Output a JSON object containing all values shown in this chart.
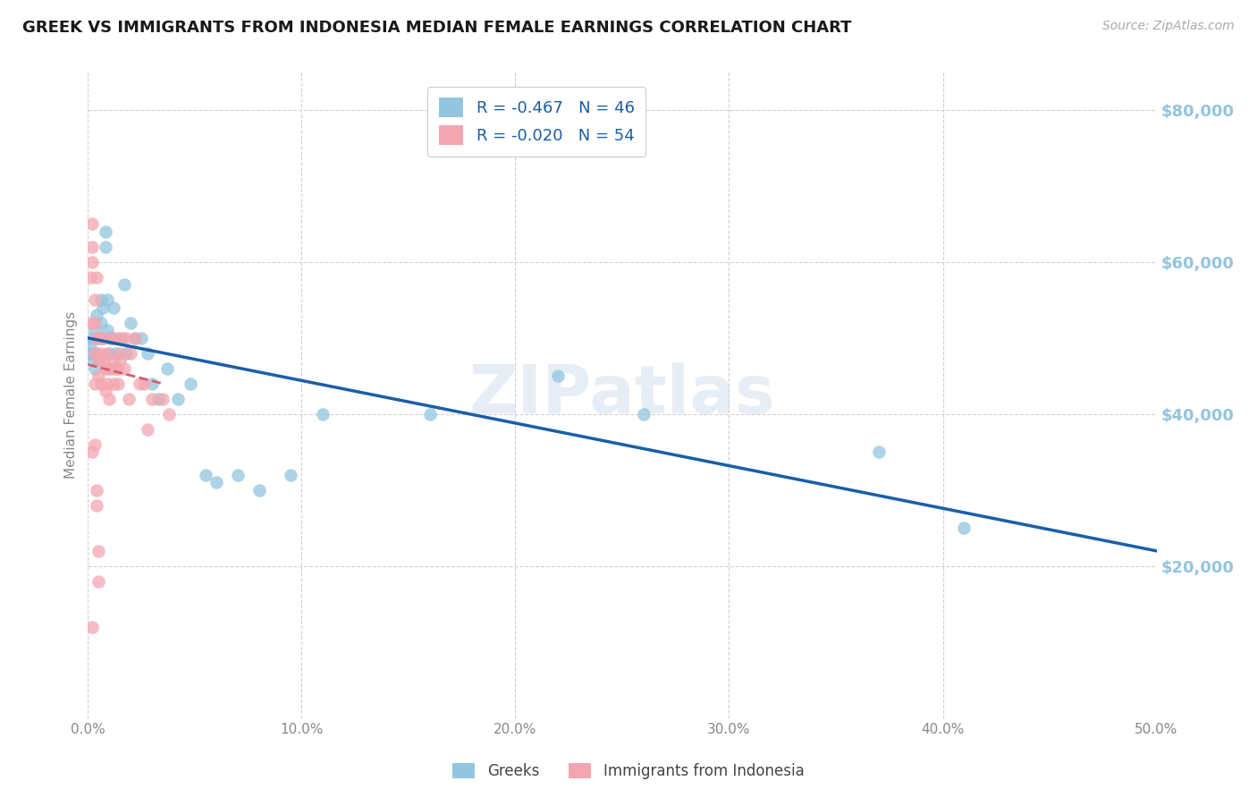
{
  "title": "GREEK VS IMMIGRANTS FROM INDONESIA MEDIAN FEMALE EARNINGS CORRELATION CHART",
  "source": "Source: ZipAtlas.com",
  "ylabel": "Median Female Earnings",
  "xlim": [
    0.0,
    0.5
  ],
  "ylim": [
    0,
    85000
  ],
  "yticks": [
    20000,
    40000,
    60000,
    80000
  ],
  "xticks": [
    0.0,
    0.1,
    0.2,
    0.3,
    0.4,
    0.5
  ],
  "xtick_labels": [
    "0.0%",
    "10.0%",
    "20.0%",
    "30.0%",
    "40.0%",
    "50.0%"
  ],
  "watermark": "ZIPatlas",
  "greek_R": "-0.467",
  "greek_N": "46",
  "indo_R": "-0.020",
  "indo_N": "54",
  "blue_color": "#92C5DE",
  "pink_color": "#F4A6B0",
  "trend_blue": "#1A5EA8",
  "trend_pink": "#D06070",
  "legend_text_color": "#1A5EA8",
  "right_label_color": "#92C5DE",
  "axis_label_color": "#888888",
  "grid_color": "#d0d0d0",
  "greek_x": [
    0.001,
    0.001,
    0.002,
    0.002,
    0.003,
    0.003,
    0.004,
    0.004,
    0.005,
    0.005,
    0.006,
    0.006,
    0.007,
    0.007,
    0.008,
    0.008,
    0.009,
    0.009,
    0.01,
    0.01,
    0.011,
    0.012,
    0.013,
    0.015,
    0.017,
    0.018,
    0.02,
    0.022,
    0.025,
    0.028,
    0.03,
    0.033,
    0.037,
    0.042,
    0.048,
    0.055,
    0.06,
    0.07,
    0.08,
    0.095,
    0.11,
    0.16,
    0.22,
    0.26,
    0.37,
    0.41
  ],
  "greek_y": [
    49000,
    48000,
    50000,
    47000,
    51000,
    46000,
    53000,
    48000,
    50000,
    47000,
    55000,
    52000,
    54000,
    50000,
    64000,
    62000,
    55000,
    51000,
    50000,
    48000,
    50000,
    54000,
    48000,
    50000,
    57000,
    48000,
    52000,
    50000,
    50000,
    48000,
    44000,
    42000,
    46000,
    42000,
    44000,
    32000,
    31000,
    32000,
    30000,
    32000,
    40000,
    40000,
    45000,
    40000,
    35000,
    25000
  ],
  "indo_x": [
    0.001,
    0.001,
    0.002,
    0.002,
    0.002,
    0.003,
    0.003,
    0.003,
    0.004,
    0.004,
    0.005,
    0.005,
    0.005,
    0.006,
    0.006,
    0.006,
    0.007,
    0.007,
    0.008,
    0.008,
    0.009,
    0.009,
    0.01,
    0.01,
    0.011,
    0.011,
    0.012,
    0.012,
    0.013,
    0.013,
    0.014,
    0.014,
    0.015,
    0.015,
    0.016,
    0.017,
    0.018,
    0.019,
    0.02,
    0.022,
    0.024,
    0.026,
    0.028,
    0.03,
    0.035,
    0.038,
    0.002,
    0.003,
    0.004,
    0.004,
    0.005,
    0.005,
    0.003,
    0.002
  ],
  "indo_y": [
    58000,
    52000,
    65000,
    62000,
    60000,
    55000,
    52000,
    48000,
    58000,
    50000,
    50000,
    47000,
    45000,
    50000,
    48000,
    44000,
    50000,
    47000,
    46000,
    43000,
    44000,
    48000,
    42000,
    46000,
    46000,
    50000,
    47000,
    44000,
    50000,
    46000,
    46000,
    44000,
    47000,
    48000,
    50000,
    46000,
    50000,
    42000,
    48000,
    50000,
    44000,
    44000,
    38000,
    42000,
    42000,
    40000,
    35000,
    36000,
    30000,
    28000,
    22000,
    18000,
    44000,
    12000
  ]
}
